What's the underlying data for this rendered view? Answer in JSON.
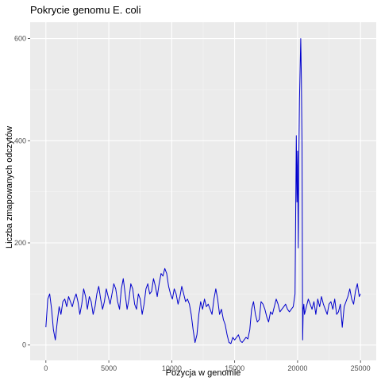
{
  "chart_data": {
    "type": "line",
    "title": "Pokrycie genomu E. coli",
    "xlabel": "Pozycja w genomie",
    "ylabel": "Liczba zmapowanych odczytów",
    "xlim": [
      -1250,
      26250
    ],
    "ylim": [
      -30,
      632
    ],
    "x_ticks": [
      0,
      5000,
      10000,
      15000,
      20000,
      25000
    ],
    "x_tick_labels": [
      "0",
      "5000",
      "10000",
      "15000",
      "20000",
      "25000"
    ],
    "y_ticks": [
      0,
      200,
      400,
      600
    ],
    "y_tick_labels": [
      "0",
      "200",
      "400",
      "600"
    ],
    "grid": true,
    "legend": "none",
    "series": [
      {
        "color": "#0000cd",
        "x": [
          0,
          150,
          300,
          450,
          600,
          750,
          900,
          1050,
          1200,
          1350,
          1500,
          1650,
          1800,
          1950,
          2100,
          2250,
          2400,
          2550,
          2700,
          2850,
          3000,
          3150,
          3300,
          3450,
          3600,
          3750,
          3900,
          4050,
          4200,
          4350,
          4500,
          4650,
          4800,
          4950,
          5100,
          5250,
          5400,
          5550,
          5700,
          5850,
          6000,
          6150,
          6300,
          6450,
          6600,
          6750,
          6900,
          7050,
          7200,
          7350,
          7500,
          7650,
          7800,
          7950,
          8100,
          8250,
          8400,
          8550,
          8700,
          8850,
          9000,
          9150,
          9300,
          9450,
          9600,
          9750,
          9900,
          10050,
          10200,
          10350,
          10500,
          10650,
          10800,
          10950,
          11100,
          11250,
          11400,
          11550,
          11700,
          11850,
          12000,
          12150,
          12300,
          12450,
          12600,
          12750,
          12900,
          13050,
          13200,
          13350,
          13500,
          13650,
          13800,
          13950,
          14100,
          14250,
          14400,
          14550,
          14700,
          14850,
          15000,
          15150,
          15300,
          15450,
          15600,
          15750,
          15900,
          16050,
          16200,
          16350,
          16500,
          16650,
          16800,
          16950,
          17100,
          17250,
          17400,
          17550,
          17700,
          17850,
          18000,
          18150,
          18300,
          18450,
          18600,
          18750,
          18900,
          19050,
          19200,
          19350,
          19500,
          19650,
          19800,
          19900,
          19950,
          20000,
          20050,
          20100,
          20150,
          20200,
          20250,
          20300,
          20350,
          20400,
          20450,
          20500,
          20550,
          20700,
          20850,
          21000,
          21150,
          21300,
          21450,
          21600,
          21750,
          21900,
          22050,
          22200,
          22350,
          22500,
          22650,
          22800,
          22950,
          23100,
          23250,
          23400,
          23550,
          23700,
          23850,
          24000,
          24150,
          24300,
          24450,
          24600,
          24750,
          24900,
          25000
        ],
        "values": [
          35,
          90,
          100,
          70,
          30,
          10,
          45,
          75,
          60,
          85,
          90,
          75,
          95,
          85,
          75,
          90,
          100,
          85,
          60,
          80,
          110,
          95,
          70,
          95,
          85,
          60,
          75,
          100,
          115,
          90,
          70,
          85,
          110,
          95,
          80,
          100,
          120,
          110,
          85,
          70,
          110,
          130,
          100,
          70,
          90,
          120,
          110,
          80,
          70,
          100,
          90,
          60,
          80,
          110,
          120,
          100,
          105,
          130,
          115,
          95,
          120,
          140,
          135,
          150,
          140,
          115,
          100,
          90,
          110,
          100,
          80,
          95,
          115,
          100,
          85,
          90,
          80,
          60,
          30,
          5,
          20,
          60,
          85,
          70,
          90,
          75,
          80,
          70,
          60,
          90,
          110,
          90,
          60,
          70,
          50,
          40,
          20,
          5,
          3,
          15,
          10,
          15,
          20,
          8,
          5,
          10,
          15,
          12,
          30,
          70,
          85,
          60,
          45,
          50,
          85,
          80,
          70,
          55,
          45,
          65,
          60,
          75,
          90,
          80,
          65,
          70,
          75,
          80,
          70,
          65,
          70,
          75,
          100,
          410,
          280,
          380,
          190,
          370,
          480,
          540,
          600,
          520,
          390,
          10,
          70,
          80,
          60,
          75,
          90,
          80,
          70,
          85,
          60,
          90,
          75,
          95,
          80,
          70,
          60,
          80,
          85,
          70,
          90,
          60,
          65,
          80,
          35,
          75,
          85,
          95,
          110,
          90,
          80,
          105,
          120,
          95,
          100
        ]
      }
    ]
  }
}
